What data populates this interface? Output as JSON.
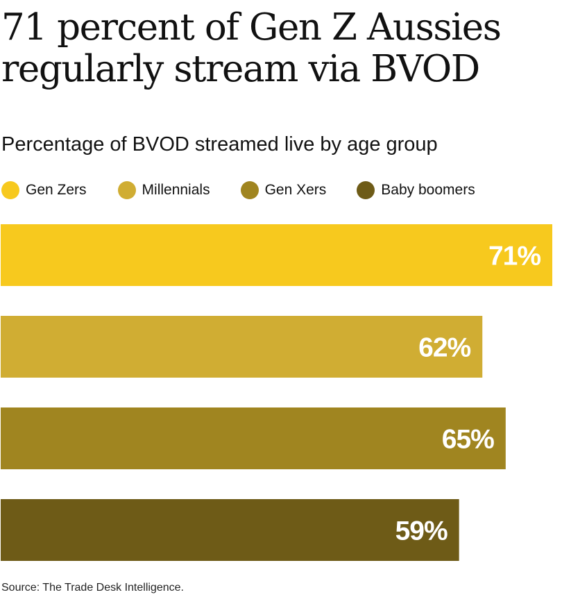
{
  "chart_data": {
    "type": "bar",
    "orientation": "horizontal",
    "title": "71 percent of Gen Z Aussies regularly stream via BVOD",
    "subtitle": "Percentage of BVOD streamed live by age group",
    "categories": [
      "Gen Zers",
      "Millennials",
      "Gen Xers",
      "Baby boomers"
    ],
    "values": [
      71,
      62,
      65,
      59
    ],
    "value_labels": [
      "71%",
      "62%",
      "65%",
      "59%"
    ],
    "colors": [
      "#f7c91e",
      "#d0ad33",
      "#a08520",
      "#6e5b17"
    ],
    "xlim": [
      0,
      71
    ],
    "grid": false,
    "axes_visible": false,
    "legend_position": "top",
    "source": "Source: The Trade Desk Intelligence."
  }
}
